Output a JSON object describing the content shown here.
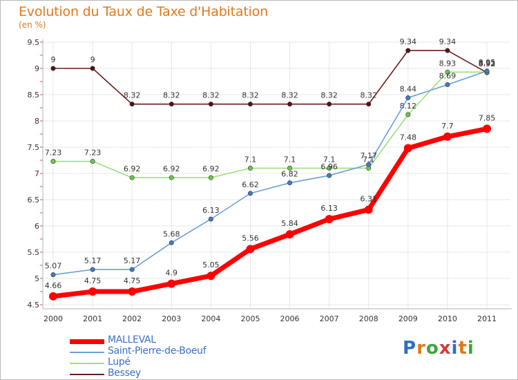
{
  "title": "Evolution du Taux de Taxe d'Habitation",
  "subtitle": "(en %)",
  "logo": {
    "text": "Proxiti",
    "colors": [
      "#2f6fc2",
      "#e0791b",
      "#3ea63e",
      "#d63a3a",
      "#2f6fc2",
      "#e0791b",
      "#3ea63e"
    ]
  },
  "chart_data": {
    "type": "line",
    "x": [
      "2000",
      "2001",
      "2002",
      "2003",
      "2004",
      "2005",
      "2006",
      "2007",
      "2008",
      "2009",
      "2010",
      "2011"
    ],
    "ylim": [
      4.5,
      9.5
    ],
    "yticks": [
      "4.5",
      "5",
      "5.5",
      "6",
      "6.5",
      "7",
      "7.5",
      "8",
      "8.5",
      "9",
      "9.5"
    ],
    "grid": true,
    "legend": "bottom-left",
    "series": [
      {
        "name": "Bessey",
        "color": "#6b1a1a",
        "marker": "#5a1010",
        "values": [
          9,
          9,
          8.32,
          8.32,
          8.32,
          8.32,
          8.32,
          8.32,
          8.32,
          9.34,
          9.34,
          8.92
        ],
        "labels": [
          "9",
          "9",
          "8.32",
          "8.32",
          "8.32",
          "8.32",
          "8.32",
          "8.32",
          "8.32",
          "9.34",
          "9.34",
          "8.92"
        ]
      },
      {
        "name": "Lupé",
        "color": "#9be07a",
        "marker": "#6cc84a",
        "values": [
          7.23,
          7.23,
          6.92,
          6.92,
          6.92,
          7.1,
          7.1,
          7.1,
          7.1,
          8.12,
          8.93,
          8.93
        ],
        "labels": [
          "7.23",
          "7.23",
          "6.92",
          "6.92",
          "6.92",
          "7.1",
          "7.1",
          "7.1",
          "7.1",
          "8.12",
          "8.93",
          "8.93"
        ]
      },
      {
        "name": "Saint-Pierre-de-Boeuf",
        "color": "#6a9fd8",
        "marker": "#3f7cc4",
        "values": [
          5.07,
          5.17,
          5.17,
          5.68,
          6.13,
          6.62,
          6.82,
          6.96,
          7.17,
          8.44,
          8.69,
          8.95
        ],
        "labels": [
          "5.07",
          "5.17",
          "5.17",
          "5.68",
          "6.13",
          "6.62",
          "6.82",
          "6.96",
          "7.17",
          "8.44",
          "8.69",
          "8.95"
        ]
      },
      {
        "name": "MALLEVAL",
        "color": "#ff0000",
        "marker": "#ff0000",
        "values": [
          4.66,
          4.75,
          4.75,
          4.9,
          5.05,
          5.56,
          5.84,
          6.13,
          6.31,
          7.48,
          7.7,
          7.85
        ],
        "labels": [
          "4.66",
          "4.75",
          "4.75",
          "4.9",
          "5.05",
          "5.56",
          "5.84",
          "6.13",
          "6.31",
          "7.48",
          "7.7",
          "7.85"
        ]
      }
    ]
  }
}
